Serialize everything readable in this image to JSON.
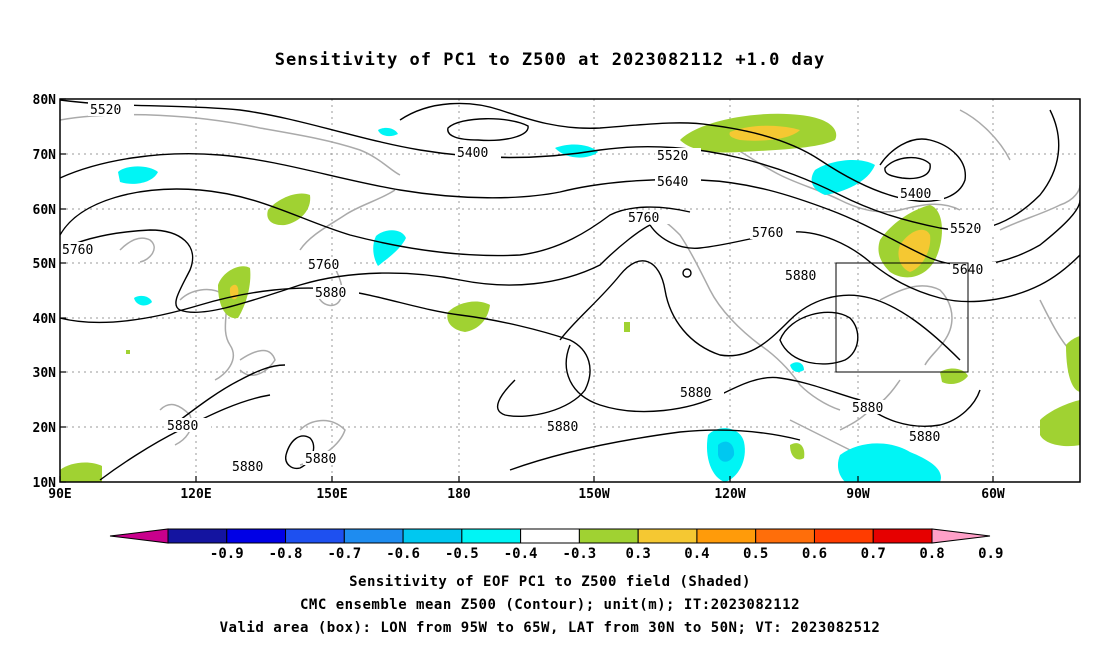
{
  "title": "Sensitivity of PC1 to Z500 at 2023082112 +1.0 day",
  "axes": {
    "lat_labels": [
      "80N",
      "70N",
      "60N",
      "50N",
      "40N",
      "30N",
      "20N",
      "10N"
    ],
    "lon_labels": [
      "90E",
      "120E",
      "150E",
      "180",
      "150W",
      "120W",
      "90W",
      "60W"
    ]
  },
  "contours": {
    "labels": [
      "5400",
      "5520",
      "5640",
      "5760",
      "5880"
    ]
  },
  "valid_box": {
    "lon_min": "95W",
    "lon_max": "65W",
    "lat_min": "30N",
    "lat_max": "50N"
  },
  "colorbar": {
    "labels": [
      "-0.9",
      "-0.8",
      "-0.7",
      "-0.6",
      "-0.5",
      "-0.4",
      "-0.3",
      "0.3",
      "0.4",
      "0.5",
      "0.6",
      "0.7",
      "0.8",
      "0.9"
    ],
    "colors": [
      "#c8008c",
      "#1414a0",
      "#0000e6",
      "#1e50f0",
      "#1e8cf0",
      "#00c8f0",
      "#00f5f5",
      "#ffffff",
      "#a0d232",
      "#f5c832",
      "#ff9b0a",
      "#ff6e0a",
      "#ff3c00",
      "#e60000",
      "#ffa0c8"
    ]
  },
  "footer": {
    "line1": "Sensitivity of EOF PC1 to Z500 field (Shaded)",
    "line2": "CMC ensemble mean Z500 (Contour); unit(m); IT:2023082112",
    "line3": "Valid area (box): LON from 95W to 65W, LAT from 30N to 50N; VT: 2023082512"
  }
}
